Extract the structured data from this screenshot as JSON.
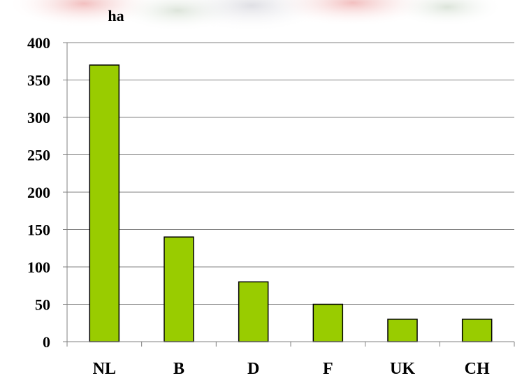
{
  "chart_data": {
    "type": "bar",
    "unit_label": "ha",
    "categories": [
      "NL",
      "B",
      "D",
      "F",
      "UK",
      "CH"
    ],
    "values": [
      370,
      140,
      80,
      50,
      30,
      30
    ],
    "ylim": [
      0,
      400
    ],
    "yticks": [
      "0",
      "50",
      "100",
      "150",
      "200",
      "250",
      "300",
      "350",
      "400"
    ],
    "grid": true,
    "legend": "none",
    "bar_color": "#99cc00",
    "bar_outline": "#000000"
  }
}
